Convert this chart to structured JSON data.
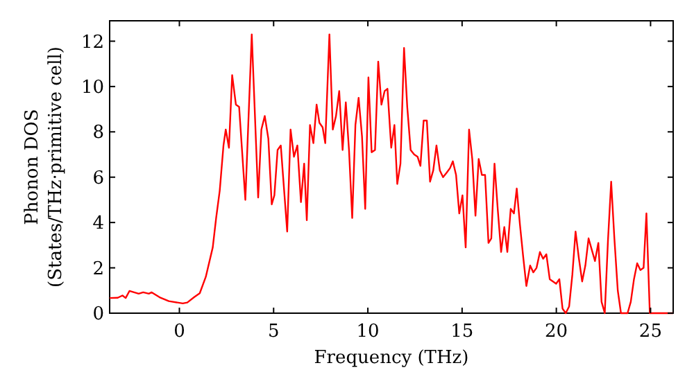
{
  "chart_data": {
    "type": "line",
    "xlabel": "Frequency (THz)",
    "ylabel": "Phonon DOS\n(States/THz·primitive cell)",
    "xlim": [
      -3.7,
      26.2
    ],
    "xticks": [
      0,
      5,
      10,
      15,
      20,
      25
    ],
    "ylim": [
      0,
      12.9
    ],
    "yticks": [
      0,
      2,
      4,
      6,
      8,
      10,
      12
    ],
    "grid": false,
    "marker": "none",
    "line_style": "solid",
    "series": [
      {
        "color": "#ff0000",
        "x": [
          -3.7,
          -3.27,
          -3.02,
          -2.85,
          -2.65,
          -2.16,
          -1.92,
          -1.62,
          -1.47,
          -1.05,
          -0.56,
          0.18,
          0.42,
          0.79,
          1.08,
          1.4,
          1.77,
          1.95,
          2.14,
          2.34,
          2.46,
          2.63,
          2.8,
          3.0,
          3.17,
          3.5,
          3.84,
          4.18,
          4.35,
          4.53,
          4.72,
          4.9,
          5.04,
          5.21,
          5.38,
          5.72,
          5.9,
          6.08,
          6.26,
          6.45,
          6.62,
          6.76,
          6.93,
          7.11,
          7.28,
          7.43,
          7.6,
          7.74,
          7.96,
          8.14,
          8.31,
          8.48,
          8.66,
          8.83,
          9.0,
          9.17,
          9.34,
          9.51,
          9.69,
          9.86,
          10.03,
          10.2,
          10.38,
          10.55,
          10.72,
          10.89,
          11.04,
          11.24,
          11.41,
          11.56,
          11.73,
          11.92,
          12.09,
          12.27,
          12.46,
          12.64,
          12.79,
          12.96,
          13.13,
          13.3,
          13.47,
          13.64,
          13.82,
          13.99,
          14.18,
          14.36,
          14.51,
          14.68,
          14.85,
          15.02,
          15.19,
          15.37,
          15.54,
          15.71,
          15.88,
          16.05,
          16.22,
          16.4,
          16.55,
          16.72,
          16.89,
          17.07,
          17.24,
          17.4,
          17.58,
          17.75,
          17.9,
          18.07,
          18.24,
          18.41,
          18.61,
          18.78,
          18.95,
          19.13,
          19.3,
          19.47,
          19.65,
          19.82,
          19.99,
          20.16,
          20.33,
          20.5,
          20.68,
          20.85,
          21.02,
          21.2,
          21.37,
          21.54,
          21.71,
          21.88,
          22.05,
          22.23,
          22.4,
          22.57,
          22.74,
          22.91,
          23.08,
          23.26,
          23.43,
          23.78,
          23.95,
          24.12,
          24.29,
          24.46,
          24.63,
          24.78,
          24.96,
          26.2
        ],
        "values": [
          0.67,
          0.68,
          0.78,
          0.67,
          0.98,
          0.86,
          0.92,
          0.86,
          0.92,
          0.7,
          0.53,
          0.43,
          0.47,
          0.71,
          0.88,
          1.6,
          2.9,
          4.2,
          5.4,
          7.4,
          8.1,
          7.3,
          10.5,
          9.2,
          9.1,
          5.0,
          12.3,
          5.1,
          8.1,
          8.7,
          7.7,
          4.8,
          5.2,
          7.2,
          7.4,
          3.6,
          8.1,
          6.9,
          7.4,
          4.9,
          6.6,
          4.1,
          8.3,
          7.5,
          9.2,
          8.4,
          8.2,
          7.5,
          12.3,
          8.1,
          8.7,
          9.8,
          7.2,
          9.3,
          7.2,
          4.2,
          8.3,
          9.5,
          7.8,
          4.6,
          10.4,
          7.1,
          7.2,
          11.1,
          9.2,
          9.8,
          9.9,
          7.3,
          8.3,
          5.7,
          6.6,
          11.7,
          9.1,
          7.2,
          7.0,
          6.9,
          6.5,
          8.5,
          8.5,
          5.8,
          6.3,
          7.4,
          6.3,
          6.0,
          6.2,
          6.4,
          6.7,
          6.1,
          4.4,
          5.2,
          2.9,
          8.1,
          6.8,
          4.3,
          6.8,
          6.1,
          6.1,
          3.1,
          3.3,
          6.6,
          4.6,
          2.7,
          3.8,
          2.7,
          4.6,
          4.4,
          5.5,
          3.9,
          2.5,
          1.2,
          2.1,
          1.8,
          2.0,
          2.7,
          2.4,
          2.6,
          1.5,
          1.4,
          1.3,
          1.5,
          0.2,
          0.0,
          0.3,
          1.7,
          3.6,
          2.4,
          1.4,
          2.1,
          3.3,
          2.8,
          2.3,
          3.1,
          0.5,
          0.0,
          3.2,
          5.8,
          3.3,
          1.0,
          0.0,
          0.0,
          0.5,
          1.5,
          2.2,
          1.9,
          2.0,
          4.4,
          0.0,
          0.0
        ]
      }
    ]
  }
}
